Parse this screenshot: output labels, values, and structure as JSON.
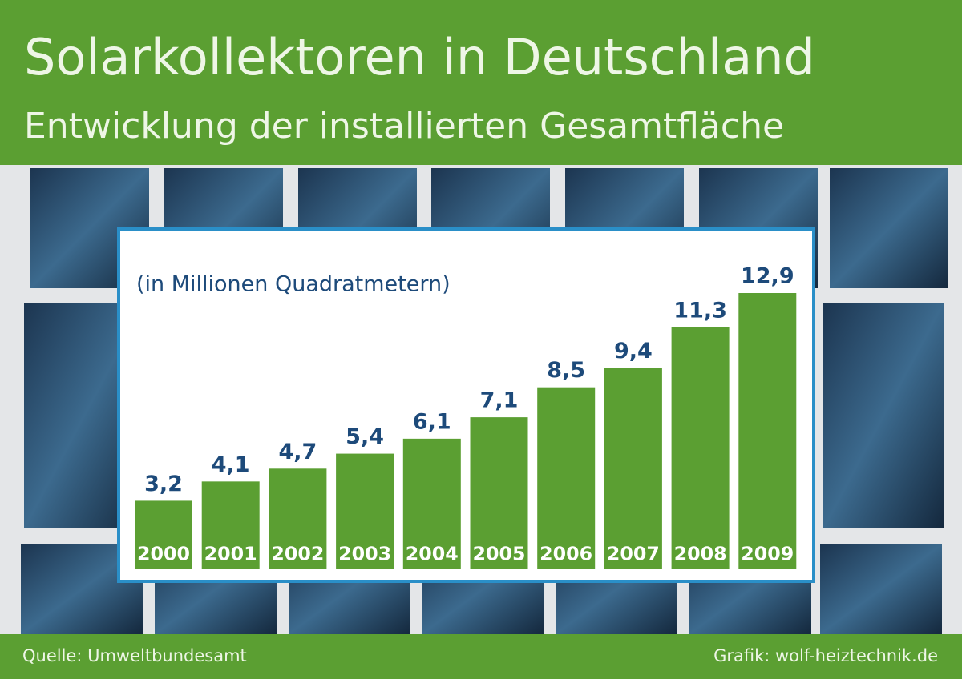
{
  "chart_data": {
    "type": "bar",
    "title": "Solarkollektoren in Deutschland",
    "subtitle": "Entwicklung der installierten Gesamtfläche",
    "unit_note": "(in Millionen Quadratmetern)",
    "source": "Quelle: Umweltbundesamt",
    "credit": "Grafik: wolf-heiztechnik.de",
    "categories": [
      "2000",
      "2001",
      "2002",
      "2003",
      "2004",
      "2005",
      "2006",
      "2007",
      "2008",
      "2009"
    ],
    "values": [
      3.2,
      4.1,
      4.7,
      5.4,
      6.1,
      7.1,
      8.5,
      9.4,
      11.3,
      12.9
    ],
    "value_labels": [
      "3,2",
      "4,1",
      "4,7",
      "5,4",
      "6,1",
      "7,1",
      "8,5",
      "9,4",
      "11,3",
      "12,9"
    ],
    "color": "#5b9f32"
  }
}
